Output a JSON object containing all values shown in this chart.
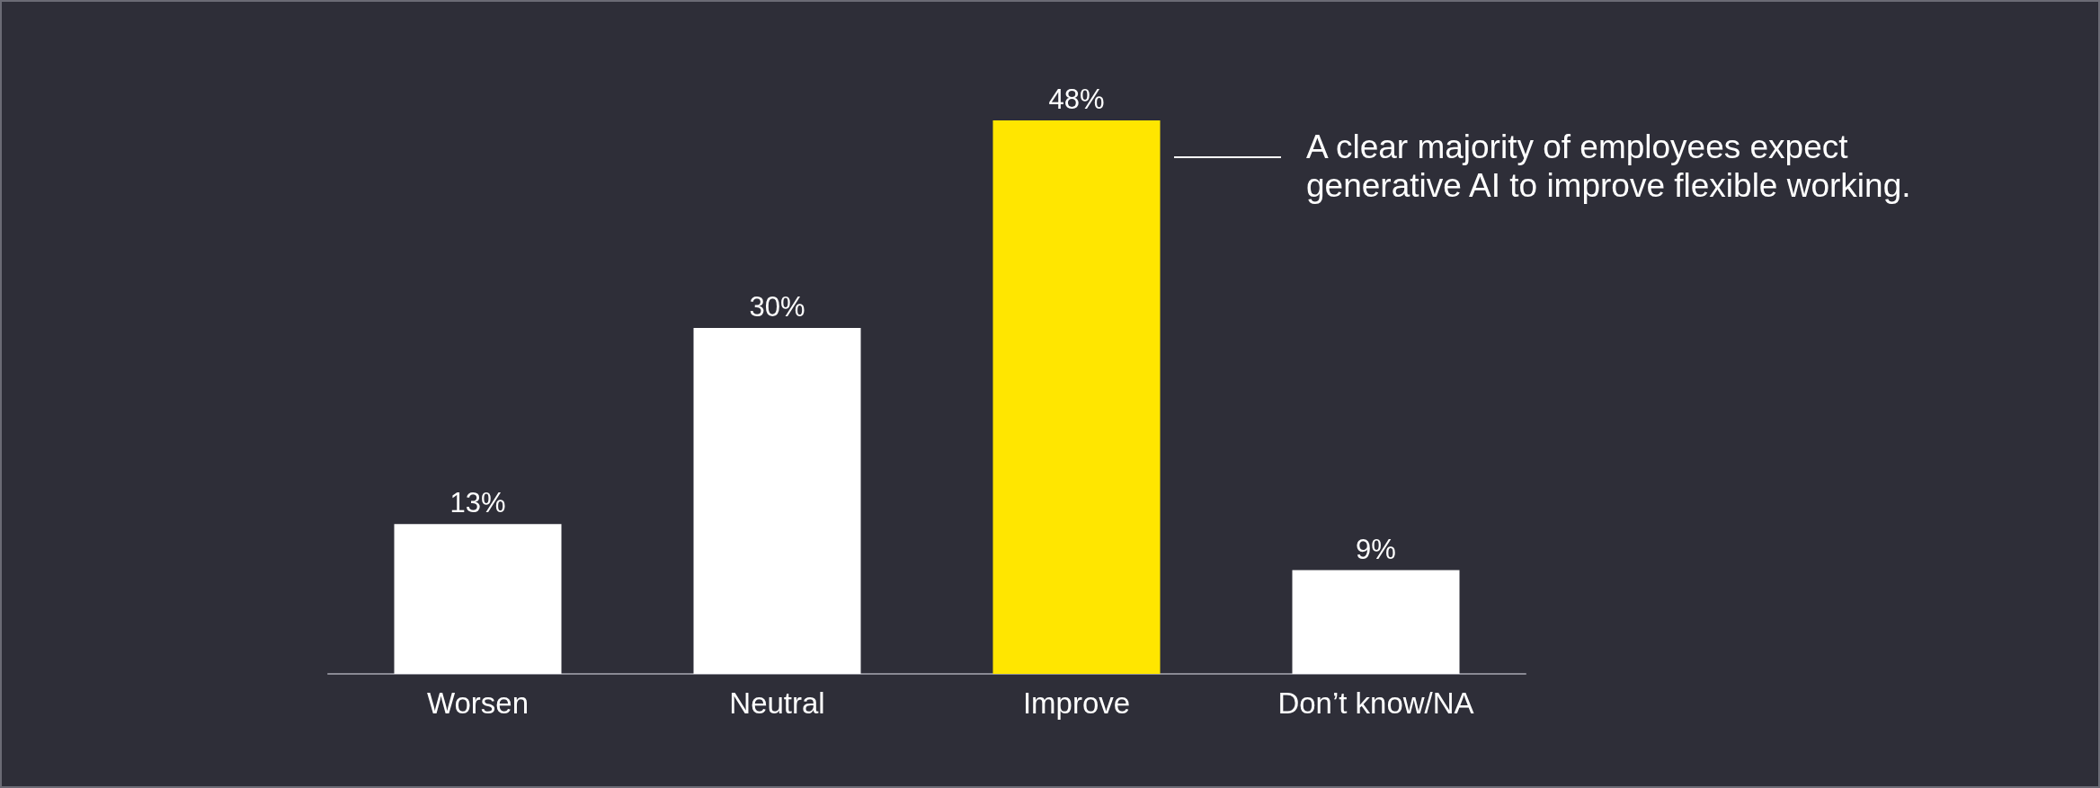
{
  "chart_data": {
    "type": "bar",
    "categories": [
      "Worsen",
      "Neutral",
      "Improve",
      "Don’t know/NA"
    ],
    "values": [
      13,
      30,
      48,
      9
    ],
    "colors": [
      "#ffffff",
      "#ffffff",
      "#ffe600",
      "#ffffff"
    ],
    "value_labels": [
      "13%",
      "30%",
      "48%",
      "9%"
    ],
    "annotations": [
      "A clear majority of employees expect generative AI to improve flexible working."
    ]
  }
}
